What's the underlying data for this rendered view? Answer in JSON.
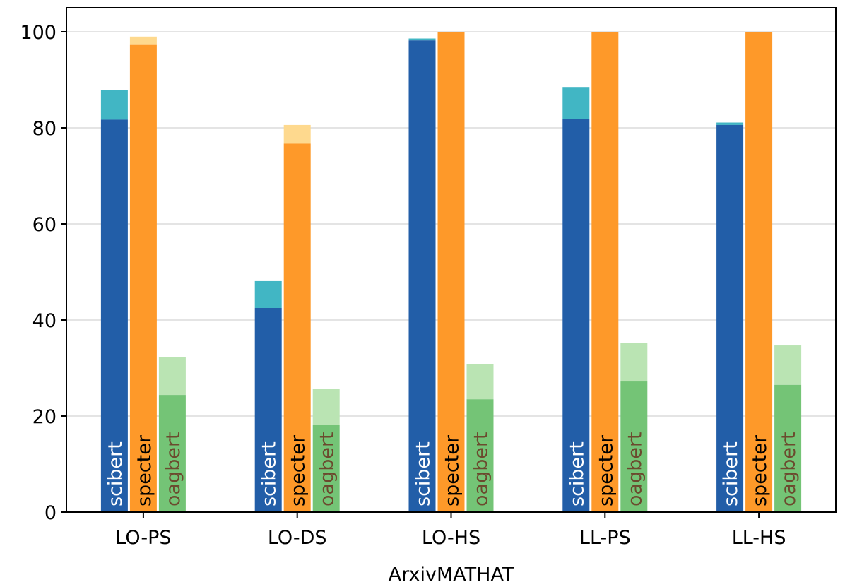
{
  "chart_data": {
    "type": "bar",
    "title": "",
    "xlabel": "ArxivMATHAT",
    "ylabel": "",
    "ylim": [
      0,
      105
    ],
    "yticks": [
      0,
      20,
      40,
      60,
      80,
      100
    ],
    "grid": "y",
    "categories": [
      "LO-PS",
      "LO-DS",
      "LO-HS",
      "LL-PS",
      "LL-HS"
    ],
    "series": [
      {
        "name": "scibert",
        "base_values": [
          81.7,
          42.5,
          98.2,
          81.9,
          80.6
        ],
        "top_values": [
          87.9,
          48.1,
          98.6,
          88.5,
          81.1
        ],
        "base_color": "#225ea8",
        "top_color": "#41b6c4",
        "label_color": "#ffffff"
      },
      {
        "name": "specter",
        "base_values": [
          97.4,
          76.7,
          100,
          100,
          100
        ],
        "top_values": [
          99.0,
          80.6,
          100,
          100,
          100
        ],
        "base_color": "#fe9929",
        "top_color": "#fed98e",
        "label_color": "#000000"
      },
      {
        "name": "oagbert",
        "base_values": [
          24.4,
          18.2,
          23.5,
          27.2,
          26.5
        ],
        "top_values": [
          32.3,
          25.6,
          30.8,
          35.2,
          34.7
        ],
        "base_color": "#74c476",
        "top_color": "#bae4b3",
        "label_color": "#6b4a2e"
      }
    ]
  }
}
